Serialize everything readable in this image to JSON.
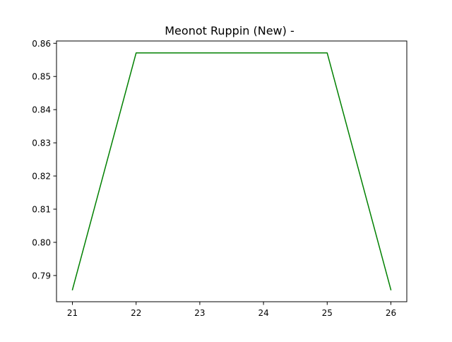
{
  "chart_data": {
    "type": "line",
    "title": "Meonot Ruppin (New) -",
    "xlabel": "",
    "ylabel": "",
    "x": [
      21,
      22,
      23,
      24,
      25,
      26
    ],
    "series": [
      {
        "values": [
          0.7857,
          0.8571,
          0.8571,
          0.8571,
          0.8571,
          0.7857
        ],
        "color": "#008000"
      }
    ],
    "xlim": [
      20.75,
      26.25
    ],
    "ylim": [
      0.7821,
      0.8607
    ],
    "xticks": [
      21,
      22,
      23,
      24,
      25,
      26
    ],
    "xtick_labels": [
      "21",
      "22",
      "23",
      "24",
      "25",
      "26"
    ],
    "yticks": [
      0.79,
      0.8,
      0.81,
      0.82,
      0.83,
      0.84,
      0.85,
      0.86
    ],
    "ytick_labels": [
      "0.79",
      "0.80",
      "0.81",
      "0.82",
      "0.83",
      "0.84",
      "0.85",
      "0.86"
    ],
    "grid": false,
    "legend": "none"
  }
}
